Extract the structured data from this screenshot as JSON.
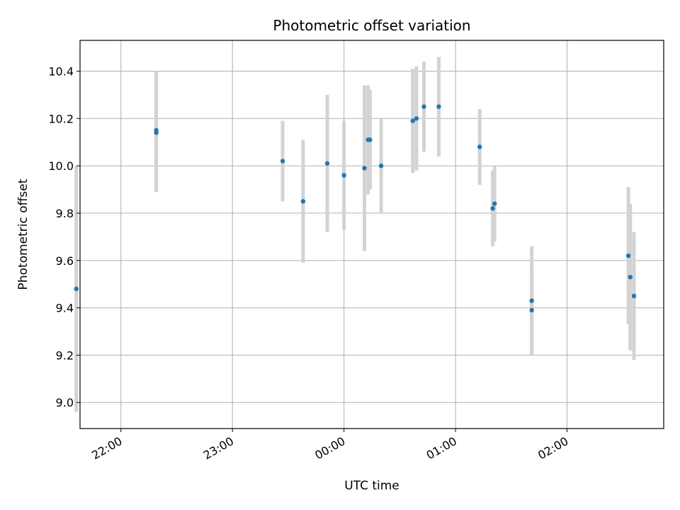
{
  "chart_data": {
    "type": "scatter",
    "title": "Photometric offset variation",
    "xlabel": "UTC time",
    "ylabel": "Photometric offset",
    "x_ticks": [
      "22:00",
      "23:00",
      "00:00",
      "01:00",
      "02:00"
    ],
    "y_ticks": [
      "9.0",
      "9.2",
      "9.4",
      "9.6",
      "9.8",
      "10.0",
      "10.2",
      "10.4"
    ],
    "xlim": [
      "21:38",
      "02:52"
    ],
    "ylim": [
      8.89,
      10.53
    ],
    "grid": true,
    "colors": {
      "marker": "#1f77b4",
      "errorbar": "#d3d3d3",
      "grid": "#b0b0b0"
    },
    "points": [
      {
        "t": "21:36",
        "y": 9.48,
        "err": 0.52
      },
      {
        "t": "22:19",
        "y": 10.15,
        "err": 0.25
      },
      {
        "t": "22:19",
        "y": 10.14,
        "err": 0.25
      },
      {
        "t": "23:27",
        "y": 10.02,
        "err": 0.17
      },
      {
        "t": "23:38",
        "y": 9.85,
        "err": 0.26
      },
      {
        "t": "23:51",
        "y": 10.01,
        "err": 0.29
      },
      {
        "t": "00:00",
        "y": 9.96,
        "err": 0.23
      },
      {
        "t": "00:11",
        "y": 9.99,
        "err": 0.35
      },
      {
        "t": "00:13",
        "y": 10.11,
        "err": 0.23
      },
      {
        "t": "00:14",
        "y": 10.11,
        "err": 0.21
      },
      {
        "t": "00:20",
        "y": 10.0,
        "err": 0.2
      },
      {
        "t": "00:37",
        "y": 10.19,
        "err": 0.22
      },
      {
        "t": "00:39",
        "y": 10.2,
        "err": 0.22
      },
      {
        "t": "00:43",
        "y": 10.25,
        "err": 0.19
      },
      {
        "t": "00:51",
        "y": 10.25,
        "err": 0.21
      },
      {
        "t": "01:13",
        "y": 10.08,
        "err": 0.16
      },
      {
        "t": "01:20",
        "y": 9.82,
        "err": 0.16
      },
      {
        "t": "01:21",
        "y": 9.84,
        "err": 0.16
      },
      {
        "t": "01:41",
        "y": 9.39,
        "err": 0.18
      },
      {
        "t": "01:41",
        "y": 9.43,
        "err": 0.23
      },
      {
        "t": "02:33",
        "y": 9.62,
        "err": 0.29
      },
      {
        "t": "02:34",
        "y": 9.53,
        "err": 0.31
      },
      {
        "t": "02:36",
        "y": 9.45,
        "err": 0.27
      }
    ]
  }
}
